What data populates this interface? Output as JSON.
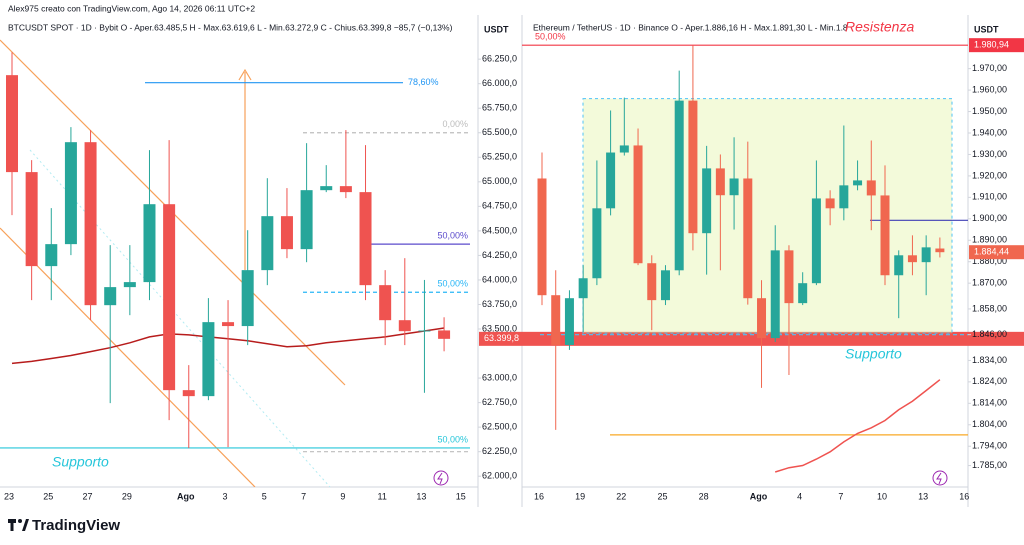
{
  "header": {
    "credit": "Alex975 creato con TradingView.com, Ago 14, 2026 06:11 UTC+2",
    "logo": "TradingView"
  },
  "chart_data": [
    {
      "type": "candlestick",
      "title": "BTCUSDT SPOT · 1D · Bybit   O - Aper.63.485,5   H - Max.63.619,6   L - Min.63.272,9   C - Chius.63.399,8   −85,7 (−0,13%)",
      "unit": "USDT",
      "categories": [
        "23",
        null,
        "25",
        null,
        "27",
        null,
        "29",
        null,
        null,
        "Ago",
        null,
        "3",
        null,
        "5",
        null,
        "7",
        null,
        "9",
        null,
        "11",
        null,
        "13",
        null,
        "15"
      ],
      "open": [
        66087,
        65099,
        64141,
        64365,
        65404,
        63743,
        63927,
        63978,
        64772,
        62877,
        62816,
        63570,
        63530,
        64100,
        64650,
        64314,
        64915,
        64956,
        64895,
        63947,
        63590,
        63478,
        63485.5,
        null
      ],
      "high": [
        66321,
        65221,
        64732,
        65557,
        65526,
        64355,
        64355,
        65323,
        65425,
        63132,
        63815,
        63794,
        64507,
        65037,
        64936,
        65394,
        65170,
        65527,
        65374,
        64100,
        64222,
        64000,
        63619.6,
        null
      ],
      "low": [
        64660,
        63794,
        63794,
        64253,
        63590,
        62745,
        63641,
        63794,
        62571,
        62286,
        62775,
        62296,
        63336,
        63947,
        64222,
        64181,
        64895,
        64834,
        63794,
        63336,
        63336,
        62850,
        63272.9,
        null
      ],
      "close": [
        65099,
        64141,
        64365,
        65404,
        63743,
        63927,
        63978,
        64772,
        62877,
        62816,
        63570,
        63530,
        64100,
        64650,
        64314,
        64915,
        64956,
        64895,
        63947,
        63590,
        63478,
        63485,
        63399.8,
        null
      ],
      "ma": [
        63150,
        63170,
        63200,
        63230,
        63270,
        63310,
        63360,
        63420,
        63450,
        63440,
        63420,
        63400,
        63380,
        63350,
        63320,
        63330,
        63360,
        63380,
        63400,
        63420,
        63450,
        63480,
        63510,
        null
      ],
      "ma_color": "#b71c1c",
      "up_color": "#26a69a",
      "down_color": "#ef5350",
      "last_label": "63.399,8",
      "ylim": [
        61890,
        66700
      ],
      "yticks": [
        {
          "value": 66250,
          "label": "66.250,0"
        },
        {
          "value": 66000,
          "label": "66.000,0"
        },
        {
          "value": 65750,
          "label": "65.750,0"
        },
        {
          "value": 65500,
          "label": "65.500,0"
        },
        {
          "value": 65250,
          "label": "65.250,0"
        },
        {
          "value": 65000,
          "label": "65.000,0"
        },
        {
          "value": 64750,
          "label": "64.750,0"
        },
        {
          "value": 64500,
          "label": "64.500,0"
        },
        {
          "value": 64250,
          "label": "64.250,0"
        },
        {
          "value": 64000,
          "label": "64.000,0"
        },
        {
          "value": 63750,
          "label": "63.750,0"
        },
        {
          "value": 63500,
          "label": "63.500,0"
        },
        {
          "value": 63000,
          "label": "63.000,0"
        },
        {
          "value": 62750,
          "label": "62.750,0"
        },
        {
          "value": 62500,
          "label": "62.500,0"
        },
        {
          "value": 62250,
          "label": "62.250,0"
        },
        {
          "value": 62000,
          "label": "62.000,0"
        }
      ],
      "grid": false,
      "levels": [
        {
          "value": 66010,
          "label": "78,60%",
          "color": "#2196f3",
          "dashed": false
        },
        {
          "value": 65500,
          "label": "0,00%",
          "color": "#bdbdbd",
          "dashed": true
        },
        {
          "value": 64365,
          "label": "50,00%",
          "color": "#5b4bcc",
          "dashed": false
        },
        {
          "value": 63875,
          "label": "50,00%",
          "color": "#29b6f6",
          "dashed": true
        },
        {
          "value": 62288,
          "label": "50,00%",
          "color": "#26c6da",
          "dashed": false
        },
        {
          "value": 62250,
          "color": "#bdbdbd",
          "dashed": true
        }
      ],
      "annotations": [
        {
          "text": "Supporto",
          "color": "#26c6da"
        }
      ]
    },
    {
      "type": "candlestick",
      "title": "Ethereum / TetherUS · 1D · Binance   O - Aper.1.886,16   H - Max.1.891,30   L - Min.1.8",
      "unit": "USDT",
      "categories": [
        "16",
        null,
        null,
        "19",
        null,
        null,
        "22",
        null,
        null,
        "25",
        null,
        null,
        "28",
        null,
        null,
        null,
        "Ago",
        null,
        null,
        "4",
        null,
        null,
        "7",
        null,
        null,
        "10",
        null,
        null,
        "13",
        null,
        null,
        "16"
      ],
      "open": [
        1918.8,
        1864.4,
        1841.2,
        1863.0,
        1872.3,
        1904.9,
        1930.9,
        1934.2,
        1879.3,
        1862.1,
        1876.0,
        1955.1,
        1893.3,
        1923.5,
        1911.0,
        1918.8,
        1863.0,
        1844.4,
        1885.3,
        1860.7,
        1870.0,
        1909.5,
        1904.9,
        1915.6,
        1917.9,
        1910.9,
        1873.7,
        1883.0,
        1879.8,
        1886.16,
        null,
        null
      ],
      "high": [
        1930.9,
        1876.0,
        1866.7,
        1878.4,
        1927.2,
        1950.5,
        1956.5,
        1942.1,
        1883.0,
        1878.4,
        1969.1,
        1980.7,
        1934.0,
        1930.0,
        1938.0,
        1936.0,
        1871.4,
        1897.0,
        1887.7,
        1875.1,
        1927.2,
        1913.3,
        1943.5,
        1927.2,
        1936.5,
        1924.9,
        1885.3,
        1892.3,
        1892.3,
        1891.3,
        null,
        null
      ],
      "low": [
        1859.8,
        1801.6,
        1838.9,
        1847.2,
        1869.1,
        1901.6,
        1929.5,
        1878.4,
        1848.1,
        1859.8,
        1873.7,
        1885.3,
        1874.0,
        1876.0,
        1895.0,
        1860.0,
        1821.2,
        1842.6,
        1827.2,
        1859.8,
        1869.1,
        1897.0,
        1899.3,
        1913.3,
        1894.7,
        1869.1,
        1853.7,
        1873.7,
        1864.4,
        1882.0,
        null,
        null
      ],
      "close": [
        1864.4,
        1841.2,
        1863.0,
        1872.3,
        1904.9,
        1930.9,
        1934.2,
        1879.3,
        1862.1,
        1876.0,
        1955.1,
        1893.3,
        1923.5,
        1911.0,
        1918.8,
        1863.0,
        1844.4,
        1885.3,
        1860.7,
        1870.0,
        1909.5,
        1904.9,
        1915.6,
        1917.9,
        1910.9,
        1873.7,
        1883.0,
        1879.8,
        1886.7,
        1884.44,
        null,
        null
      ],
      "ma": [
        null,
        null,
        null,
        null,
        null,
        null,
        null,
        null,
        null,
        null,
        null,
        null,
        null,
        null,
        null,
        null,
        null,
        1782,
        1784,
        1785,
        1788,
        1791.4,
        1796,
        1800,
        1802.6,
        1806,
        1811,
        1815,
        1820,
        1825,
        null,
        null
      ],
      "ma_color": "#ef5350",
      "up_color": "#26a69a",
      "down_color": "#f0674f",
      "last_label": "1.884,44",
      "ylim": [
        1775,
        1995
      ],
      "yticks": [
        {
          "value": 1970,
          "label": "1.970,00"
        },
        {
          "value": 1960,
          "label": "1.960,00"
        },
        {
          "value": 1950,
          "label": "1.950,00"
        },
        {
          "value": 1940,
          "label": "1.940,00"
        },
        {
          "value": 1930,
          "label": "1.930,00"
        },
        {
          "value": 1920,
          "label": "1.920,00"
        },
        {
          "value": 1910,
          "label": "1.910,00"
        },
        {
          "value": 1900,
          "label": "1.900,00"
        },
        {
          "value": 1890,
          "label": "1.890,00"
        },
        {
          "value": 1880,
          "label": "1.880,00"
        },
        {
          "value": 1870,
          "label": "1.870,00"
        },
        {
          "value": 1858,
          "label": "1.858,00"
        },
        {
          "value": 1846,
          "label": "1.846,00"
        },
        {
          "value": 1834,
          "label": "1.834,00"
        },
        {
          "value": 1824,
          "label": "1.824,00"
        },
        {
          "value": 1814,
          "label": "1.814,00"
        },
        {
          "value": 1804,
          "label": "1.804,00"
        },
        {
          "value": 1794,
          "label": "1.794,00"
        },
        {
          "value": 1785,
          "label": "1.785,00"
        }
      ],
      "grid": false,
      "levels": [
        {
          "value": 1980.94,
          "label": "50,00%",
          "tag": "1.980,94",
          "color": "#f23645",
          "dashed": false
        },
        {
          "value": 1899.3,
          "color": "#3f3fb5",
          "dashed": false
        },
        {
          "value": 1846,
          "color": "#4fc3f7",
          "dashed": true
        },
        {
          "value": 1799.3,
          "color": "#f9a825",
          "dashed": false
        }
      ],
      "box": {
        "top": 1956,
        "bottom": 1846.7
      },
      "annotations": [
        {
          "text": "Resistenza",
          "color": "#f23645"
        },
        {
          "text": "Supporto",
          "color": "#26c6da"
        }
      ]
    }
  ]
}
